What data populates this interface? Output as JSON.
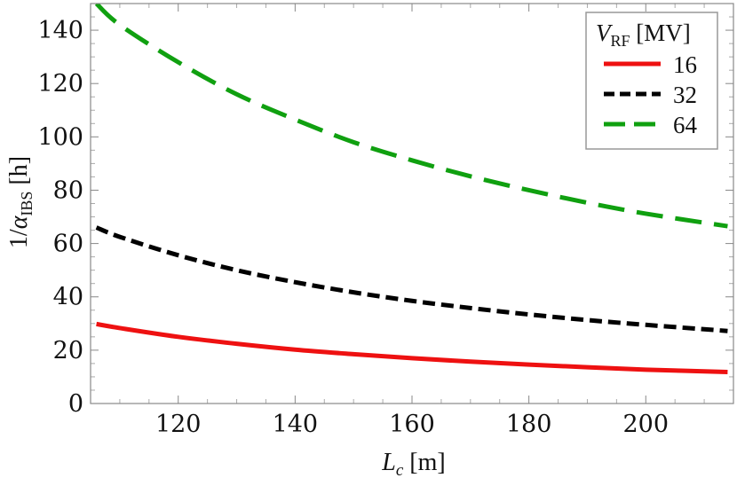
{
  "chart_data": {
    "type": "line",
    "xlabel_var": "L",
    "xlabel_sub": "c",
    "xlabel_unit": " [m]",
    "ylabel_prefix": "1/",
    "ylabel_var": "α",
    "ylabel_sub": "IBS",
    "ylabel_unit": " [h]",
    "xlim": [
      105,
      215
    ],
    "ylim": [
      0,
      150
    ],
    "xticks": [
      120,
      140,
      160,
      180,
      200
    ],
    "yticks": [
      0,
      20,
      40,
      60,
      80,
      100,
      120,
      140
    ],
    "x": [
      106,
      110,
      120,
      130,
      140,
      150,
      160,
      170,
      180,
      190,
      200,
      214
    ],
    "legend": {
      "title_var": "V",
      "title_sub": "RF",
      "title_unit": " [MV]",
      "position": "top-right"
    },
    "series": [
      {
        "name": "16",
        "color": "#ee1111",
        "style": "solid",
        "values": [
          29.8,
          28.3,
          25.0,
          22.4,
          20.2,
          18.5,
          17.0,
          15.7,
          14.6,
          13.6,
          12.7,
          11.8
        ]
      },
      {
        "name": "32",
        "color": "#000000",
        "style": "dashed",
        "values": [
          66.0,
          62.5,
          55.6,
          50.0,
          45.5,
          41.7,
          38.5,
          35.8,
          33.4,
          31.3,
          29.5,
          27.2
        ]
      },
      {
        "name": "64",
        "color": "#10a010",
        "style": "long-dashed",
        "values": [
          150.0,
          142.0,
          128.0,
          116.0,
          106.5,
          98.0,
          91.2,
          85.2,
          80.0,
          75.3,
          71.2,
          66.5
        ]
      }
    ]
  }
}
